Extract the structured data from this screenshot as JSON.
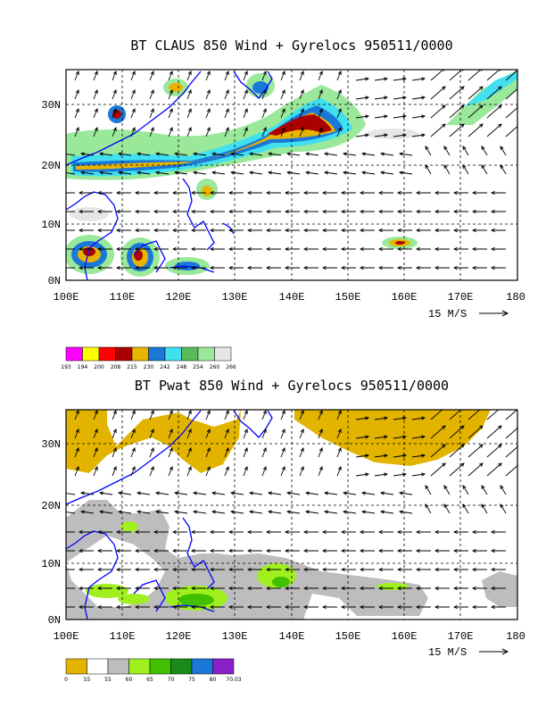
{
  "panel_top": {
    "title": "BT CLAUS 850 Wind + Gyrelocs 950511/0000",
    "x_ticks": [
      "100E",
      "110E",
      "120E",
      "130E",
      "140E",
      "150E",
      "160E",
      "170E",
      "180"
    ],
    "y_ticks": [
      "0N",
      "10N",
      "20N",
      "30N"
    ],
    "wind_key": "15 M/S",
    "colorbar_labels": [
      "193",
      "194",
      "200",
      "208",
      "215",
      "230",
      "242",
      "248",
      "254",
      "260",
      "266"
    ],
    "colorbar_colors": [
      "#ff00ff",
      "#ffff00",
      "#ff0000",
      "#aa0000",
      "#e8b400",
      "#1a78d8",
      "#40e0f0",
      "#5aba5a",
      "#9ae89a",
      "#e6e6e6"
    ]
  },
  "panel_bottom": {
    "title": "BT Pwat 850 Wind + Gyrelocs 950511/0000",
    "x_ticks": [
      "100E",
      "110E",
      "120E",
      "130E",
      "140E",
      "150E",
      "160E",
      "170E",
      "180"
    ],
    "y_ticks": [
      "0N",
      "10N",
      "20N",
      "30N"
    ],
    "wind_key": "15 M/S",
    "colorbar_labels": [
      "0",
      "55",
      "55",
      "60",
      "65",
      "70",
      "75",
      "80",
      "70.03"
    ],
    "colorbar_colors": [
      "#e2b400",
      "#ffffff",
      "#bdbdbd",
      "#a0f020",
      "#40c000",
      "#1a8a1a",
      "#1a78d8",
      "#8a20c8"
    ]
  }
}
